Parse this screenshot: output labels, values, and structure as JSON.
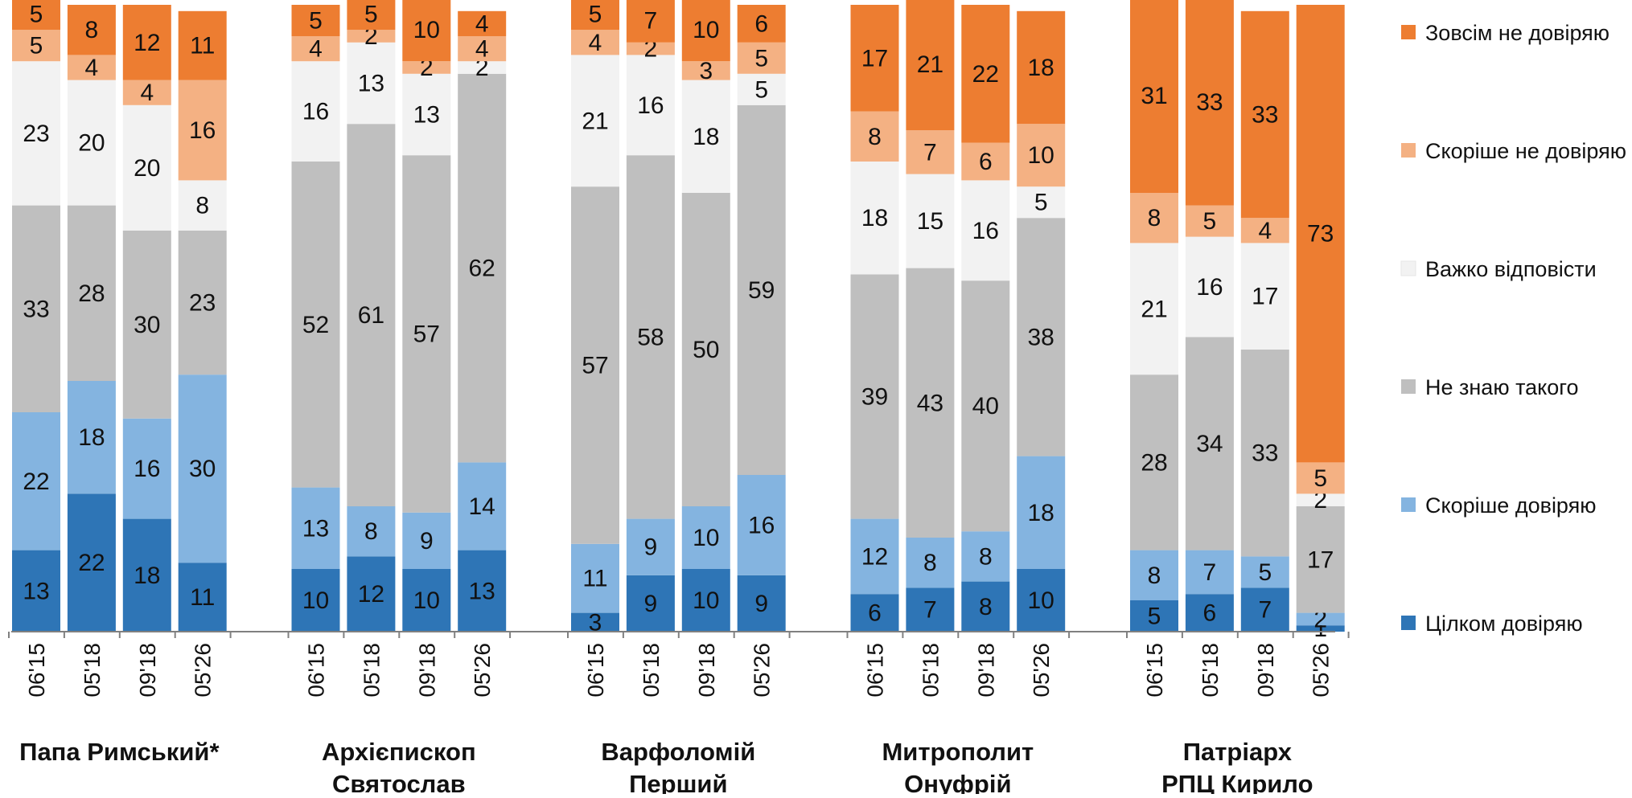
{
  "chart_data": {
    "type": "bar",
    "stacked": true,
    "categories_per_group": [
      "06'15",
      "05'18",
      "09'18",
      "05'26"
    ],
    "groups": [
      {
        "label_lines": [
          "Папа Римський*"
        ],
        "bars": [
          {
            "values": [
              13,
              22,
              33,
              23,
              5,
              5
            ]
          },
          {
            "values": [
              22,
              18,
              28,
              20,
              4,
              8
            ]
          },
          {
            "values": [
              18,
              16,
              30,
              20,
              4,
              12
            ]
          },
          {
            "values": [
              11,
              30,
              23,
              8,
              16,
              11
            ]
          }
        ]
      },
      {
        "label_lines": [
          "Архієпископ",
          "Святослав"
        ],
        "bars": [
          {
            "values": [
              10,
              13,
              52,
              16,
              4,
              5
            ]
          },
          {
            "values": [
              12,
              8,
              61,
              13,
              2,
              5
            ]
          },
          {
            "values": [
              10,
              9,
              57,
              13,
              2,
              10
            ]
          },
          {
            "values": [
              13,
              14,
              62,
              2,
              4,
              4
            ]
          }
        ]
      },
      {
        "label_lines": [
          "Варфоломій",
          "Перший"
        ],
        "bars": [
          {
            "values": [
              3,
              11,
              57,
              21,
              4,
              5
            ]
          },
          {
            "values": [
              9,
              9,
              58,
              16,
              2,
              7
            ]
          },
          {
            "values": [
              10,
              10,
              50,
              18,
              3,
              10
            ]
          },
          {
            "values": [
              9,
              16,
              59,
              5,
              5,
              6
            ]
          }
        ]
      },
      {
        "label_lines": [
          "Митрополит",
          "Онуфрій"
        ],
        "bars": [
          {
            "values": [
              6,
              12,
              39,
              18,
              8,
              17
            ]
          },
          {
            "values": [
              7,
              8,
              43,
              15,
              7,
              21
            ]
          },
          {
            "values": [
              8,
              8,
              40,
              16,
              6,
              22
            ]
          },
          {
            "values": [
              10,
              18,
              38,
              5,
              10,
              18
            ]
          }
        ]
      },
      {
        "label_lines": [
          "Патріарх",
          "РПЦ Кирило"
        ],
        "bars": [
          {
            "values": [
              5,
              8,
              28,
              21,
              8,
              31
            ]
          },
          {
            "values": [
              6,
              7,
              34,
              16,
              5,
              33
            ]
          },
          {
            "values": [
              7,
              5,
              33,
              17,
              4,
              33
            ]
          },
          {
            "values": [
              1,
              2,
              17,
              2,
              5,
              73
            ]
          }
        ]
      }
    ],
    "series": [
      {
        "name": "Цілком довіряю",
        "color": "#2e75b6"
      },
      {
        "name": "Скоріше довіряю",
        "color": "#84b4e0"
      },
      {
        "name": "Не знаю такого",
        "color": "#bfbfbf"
      },
      {
        "name": "Важко відповісти",
        "color": "#f2f2f2"
      },
      {
        "name": "Скоріше не довіряю",
        "color": "#f4b183"
      },
      {
        "name": "Зовсім не довіряю",
        "color": "#ed7d31"
      }
    ],
    "legend_order": [
      "Зовсім не довіряю",
      "Скоріше не довіряю",
      "Важко відповісти",
      "Не знаю такого",
      "Скоріше довіряю",
      "Цілком довіряю"
    ],
    "legend_position": "right",
    "ylim": [
      0,
      100
    ],
    "grid": false
  }
}
